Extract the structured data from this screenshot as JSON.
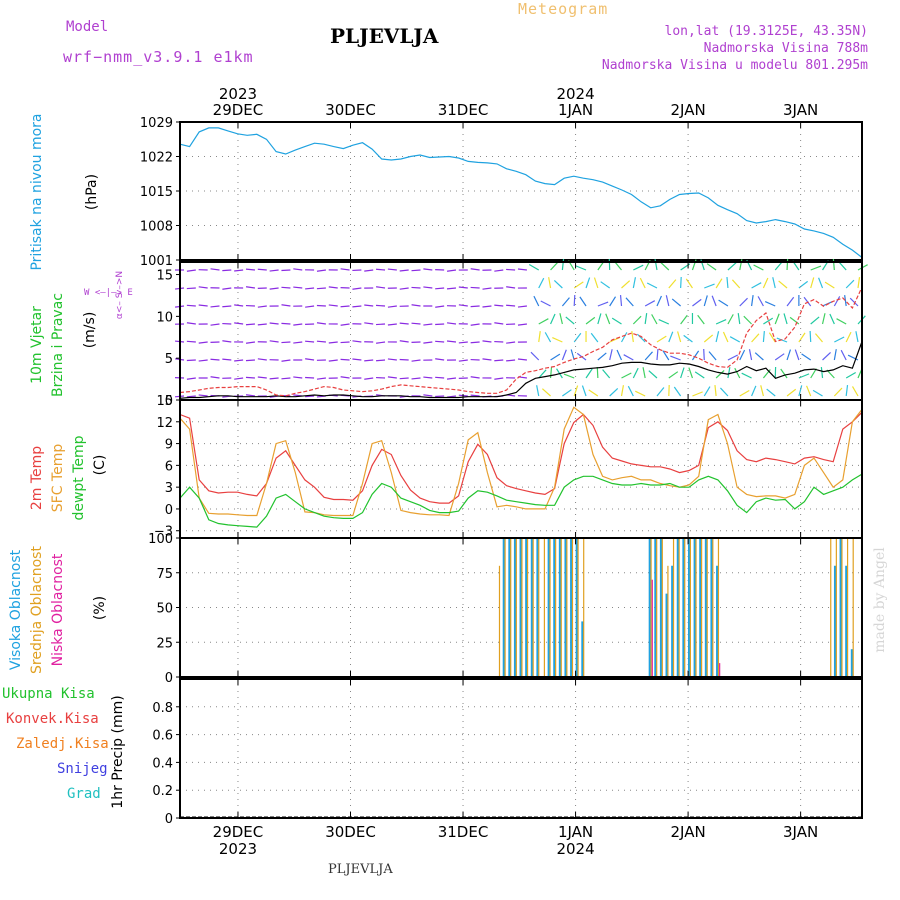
{
  "header": {
    "model_label": "Model",
    "model_name": "wrf−nmm_v3.9.1  e1km",
    "station_title": "PLJEVLJA",
    "meteogram_label": "Meteogram",
    "lonlat": "lon,lat (19.3125E, 43.35N)",
    "elevation": "Nadmorska Visina 788m",
    "model_elevation": "Nadmorska Visina u modelu 801.295m"
  },
  "footer": {
    "station": "PLJEVLJA",
    "signature": "made by Angel"
  },
  "time_axis": {
    "days": [
      {
        "label": "29DEC",
        "pos": 0.085
      },
      {
        "label": "30DEC",
        "pos": 0.25
      },
      {
        "label": "31DEC",
        "pos": 0.415
      },
      {
        "label": "1JAN",
        "pos": 0.58
      },
      {
        "label": "2JAN",
        "pos": 0.745
      },
      {
        "label": "3JAN",
        "pos": 0.91
      }
    ],
    "years": [
      {
        "label": "2023",
        "pos": 0.085
      },
      {
        "label": "2024",
        "pos": 0.58
      }
    ]
  },
  "colors": {
    "pressure": "#1fa2e0",
    "wind_title": "#22c22e",
    "wind_axis": "#b040d0",
    "t2m": "#e84040",
    "sfc": "#e8a030",
    "dewpt": "#22c22e",
    "high_cloud": "#1fa2e0",
    "mid_cloud": "#e0a020",
    "low_cloud": "#e020a0",
    "total_precip": "#22c22e",
    "conv_precip": "#e84040",
    "frozen_precip": "#f08020",
    "snow": "#4040e0",
    "hail": "#20c0c0"
  },
  "chart_data": [
    {
      "type": "line",
      "panel": "pressure",
      "ylabel_left": "Pritisak na nivou mora",
      "ylabel_unit": "(hPa)",
      "yticks": [
        "1029",
        "1022",
        "1015",
        "1008",
        "1001"
      ],
      "ylim": [
        1001,
        1029
      ],
      "grid": true,
      "series": [
        {
          "name": "Pritisak na nivou mora",
          "values": [
            1024.5,
            1024.0,
            1027.0,
            1027.8,
            1027.8,
            1027.2,
            1026.6,
            1026.3,
            1026.5,
            1025.5,
            1023.0,
            1022.5,
            1023.3,
            1024.0,
            1024.7,
            1024.5,
            1024.0,
            1023.6,
            1024.3,
            1024.8,
            1023.5,
            1021.5,
            1021.3,
            1021.5,
            1022.0,
            1022.3,
            1021.8,
            1021.9,
            1022.0,
            1021.7,
            1021.0,
            1020.8,
            1020.7,
            1020.5,
            1019.5,
            1019.0,
            1018.3,
            1017.0,
            1016.5,
            1016.3,
            1017.6,
            1018.0,
            1017.6,
            1017.3,
            1016.8,
            1016.0,
            1015.2,
            1014.3,
            1012.8,
            1011.6,
            1012.0,
            1013.3,
            1014.3,
            1014.5,
            1014.6,
            1013.6,
            1012.1,
            1011.2,
            1010.4,
            1009.0,
            1008.5,
            1008.8,
            1009.2,
            1008.8,
            1008.3,
            1007.3,
            1006.9,
            1006.4,
            1005.6,
            1004.2,
            1003.0,
            1001.5
          ]
        }
      ]
    },
    {
      "type": "line",
      "panel": "wind",
      "ylabel_left_1": "10m Vjetar",
      "ylabel_left_2": "Brzina i Pravac",
      "ylabel_unit": "(m/s)",
      "compass_ns": "α<– S –>N",
      "compass_we": "W  <–|–>  E",
      "yticks": [
        "15",
        "10",
        "5",
        "0"
      ],
      "ylim": [
        0,
        16.5
      ],
      "series": [
        {
          "name": "wind speed",
          "values": [
            0.2,
            0.3,
            0.3,
            0.4,
            0.5,
            0.5,
            0.4,
            0.4,
            0.4,
            0.4,
            0.5,
            0.4,
            0.4,
            0.5,
            0.6,
            0.5,
            0.6,
            0.6,
            0.5,
            0.4,
            0.4,
            0.5,
            0.5,
            0.5,
            0.4,
            0.4,
            0.3,
            0.3,
            0.3,
            0.3,
            0.4,
            0.4,
            0.4,
            0.4,
            0.6,
            0.9,
            2.0,
            2.6,
            2.8,
            3.0,
            3.3,
            3.6,
            3.7,
            3.8,
            3.9,
            4.1,
            4.4,
            4.5,
            4.5,
            4.3,
            4.2,
            4.2,
            4.4,
            4.3,
            4.0,
            3.6,
            3.3,
            3.1,
            3.4,
            4.0,
            3.5,
            3.8,
            2.6,
            3.0,
            3.2,
            3.6,
            3.7,
            3.4,
            3.6,
            4.1,
            3.8,
            7.0
          ]
        },
        {
          "name": "gusts",
          "values": [
            0.9,
            1.0,
            1.2,
            1.4,
            1.5,
            1.5,
            1.6,
            1.6,
            1.6,
            1.2,
            0.6,
            0.5,
            0.8,
            1.0,
            1.3,
            1.6,
            1.5,
            1.2,
            1.1,
            1.0,
            1.1,
            1.3,
            1.6,
            1.8,
            1.7,
            1.6,
            1.5,
            1.4,
            1.3,
            1.2,
            1.0,
            0.9,
            0.8,
            0.8,
            1.2,
            2.5,
            3.3,
            3.5,
            3.8,
            4.0,
            4.5,
            4.9,
            5.2,
            5.8,
            6.3,
            7.2,
            7.6,
            8.0,
            7.6,
            6.6,
            6.0,
            5.6,
            5.6,
            5.4,
            5.0,
            4.4,
            4.0,
            3.9,
            4.8,
            8.0,
            9.5,
            10.4,
            7.0,
            7.3,
            8.7,
            11.5,
            12.0,
            11.2,
            11.8,
            12.2,
            11.0,
            13.5
          ]
        }
      ]
    },
    {
      "type": "line",
      "panel": "temperature",
      "ylabel_left_1": "2m Temp",
      "ylabel_left_2": "SFC Temp",
      "ylabel_left_3": "dewpt Temp",
      "ylabel_unit": "(C)",
      "yticks": [
        "15",
        "12",
        "9",
        "6",
        "3",
        "0",
        "−3"
      ],
      "ylim": [
        -4,
        15
      ],
      "grid": true,
      "series": [
        {
          "name": "2m Temp",
          "values": [
            13.0,
            12.5,
            4.0,
            2.5,
            2.2,
            2.3,
            2.3,
            2.0,
            1.8,
            3.5,
            7.0,
            8.0,
            6.0,
            4.0,
            3.0,
            1.6,
            1.3,
            1.3,
            1.2,
            2.5,
            6.0,
            8.2,
            7.5,
            4.6,
            2.6,
            1.5,
            1.0,
            0.8,
            0.8,
            1.8,
            6.5,
            8.9,
            7.5,
            4.3,
            3.2,
            2.8,
            2.5,
            2.2,
            2.0,
            2.8,
            9.0,
            11.9,
            13.0,
            11.5,
            8.5,
            7.0,
            6.6,
            6.2,
            6.0,
            5.8,
            5.8,
            5.5,
            5.0,
            5.3,
            6.0,
            11.2,
            12.0,
            10.8,
            8.0,
            6.8,
            6.5,
            7.0,
            6.8,
            6.5,
            6.2,
            7.0,
            7.2,
            6.8,
            6.5,
            11.0,
            12.0,
            13.3
          ]
        },
        {
          "name": "SFC Temp",
          "values": [
            12.5,
            11.0,
            1.5,
            -0.6,
            -0.7,
            -0.7,
            -0.8,
            -0.9,
            -0.9,
            3.5,
            9.0,
            9.4,
            5.0,
            -0.4,
            -0.5,
            -0.8,
            -0.9,
            -0.9,
            -0.9,
            3.5,
            9.0,
            9.4,
            5.0,
            -0.2,
            -0.5,
            -0.7,
            -0.8,
            -0.8,
            -0.9,
            3.5,
            9.5,
            10.5,
            5.0,
            0.3,
            0.5,
            0.3,
            0.0,
            0.0,
            0.0,
            3.0,
            11.0,
            14.0,
            13.0,
            7.5,
            4.5,
            4.0,
            4.3,
            4.5,
            4.0,
            4.0,
            3.5,
            3.2,
            3.0,
            3.3,
            4.5,
            12.3,
            13.0,
            9.0,
            3.0,
            2.0,
            1.7,
            1.8,
            1.8,
            1.5,
            2.0,
            6.0,
            7.0,
            5.0,
            3.0,
            4.0,
            12.0,
            13.7
          ]
        },
        {
          "name": "dewpt Temp",
          "values": [
            1.5,
            3.0,
            1.5,
            -1.5,
            -2.0,
            -2.2,
            -2.3,
            -2.4,
            -2.5,
            -1.0,
            1.5,
            2.0,
            1.0,
            0.0,
            -0.5,
            -1.0,
            -1.2,
            -1.3,
            -1.3,
            -0.5,
            2.0,
            3.5,
            3.0,
            1.5,
            1.0,
            0.5,
            -0.2,
            -0.5,
            -0.5,
            -0.3,
            1.5,
            2.5,
            2.3,
            1.8,
            1.2,
            1.0,
            0.8,
            0.6,
            0.5,
            0.5,
            3.0,
            4.0,
            4.5,
            4.5,
            4.0,
            3.5,
            3.3,
            3.3,
            3.5,
            3.3,
            3.3,
            3.5,
            3.0,
            3.0,
            4.0,
            4.5,
            4.0,
            2.5,
            0.5,
            -0.5,
            1.0,
            1.5,
            1.2,
            1.3,
            0.0,
            1.0,
            3.0,
            2.0,
            2.5,
            3.0,
            4.0,
            4.8
          ]
        }
      ]
    },
    {
      "type": "bar",
      "panel": "clouds",
      "ylabel_left_1": "Visoka Oblacnost",
      "ylabel_left_2": "Srednja Oblacnost",
      "ylabel_left_3": "Niska Oblacnost",
      "ylabel_unit": "(%)",
      "yticks": [
        "100",
        "75",
        "50",
        "25",
        "0"
      ],
      "ylim": [
        0,
        100
      ],
      "grid": true,
      "series": [
        {
          "name": "Visoka Oblacnost",
          "values": [
            0,
            0,
            0,
            0,
            0,
            0,
            0,
            0,
            0,
            0,
            0,
            0,
            0,
            0,
            0,
            0,
            0,
            0,
            0,
            0,
            0,
            100,
            100,
            100,
            100,
            100,
            100,
            100,
            0,
            100,
            100,
            100,
            100,
            100,
            100,
            40,
            0,
            0,
            0,
            0,
            0,
            0,
            0,
            0,
            0,
            0,
            0,
            100,
            100,
            100,
            60,
            80,
            100,
            100,
            100,
            100,
            100,
            100,
            100,
            80,
            0,
            0,
            0,
            0,
            0,
            0,
            0,
            0,
            0,
            0,
            0,
            0,
            0,
            0,
            0,
            0,
            0,
            0,
            0,
            0,
            80,
            100,
            80,
            20
          ]
        },
        {
          "name": "Srednja Oblacnost",
          "values": [
            0,
            0,
            0,
            0,
            0,
            0,
            0,
            0,
            0,
            0,
            0,
            0,
            0,
            0,
            0,
            0,
            0,
            0,
            0,
            0,
            80,
            100,
            100,
            100,
            100,
            100,
            100,
            100,
            100,
            100,
            100,
            100,
            100,
            100,
            100,
            100,
            0,
            0,
            0,
            0,
            0,
            0,
            0,
            0,
            0,
            0,
            0,
            100,
            100,
            100,
            80,
            100,
            100,
            100,
            100,
            100,
            100,
            100,
            100,
            100,
            0,
            0,
            0,
            0,
            0,
            0,
            0,
            0,
            0,
            0,
            0,
            0,
            0,
            0,
            0,
            0,
            0,
            0,
            0,
            100,
            100,
            100,
            100,
            100
          ]
        },
        {
          "name": "Niska Oblacnost",
          "values": [
            0,
            0,
            0,
            0,
            0,
            0,
            0,
            0,
            0,
            0,
            0,
            0,
            0,
            0,
            0,
            0,
            0,
            0,
            0,
            0,
            0,
            0,
            0,
            0,
            0,
            0,
            0,
            0,
            0,
            0,
            0,
            0,
            0,
            0,
            0,
            0,
            0,
            0,
            0,
            0,
            0,
            0,
            0,
            0,
            0,
            0,
            0,
            70,
            0,
            0,
            0,
            0,
            0,
            0,
            0,
            0,
            0,
            0,
            0,
            10,
            0,
            0,
            0,
            0,
            0,
            0,
            0,
            0,
            0,
            0,
            0,
            0,
            0,
            0,
            0,
            0,
            0,
            0,
            0,
            0,
            0,
            0,
            0,
            0
          ]
        }
      ]
    },
    {
      "type": "bar",
      "panel": "precipitation",
      "ylabel_unit": "1hr Precip (mm)",
      "legend": [
        "Ukupna  Kisa",
        "Konvek.Kisa",
        "Zaledj.Kisa",
        "Snijeg",
        "Grad"
      ],
      "yticks": [
        "0.8",
        "0.6",
        "0.4",
        "0.2",
        "0"
      ],
      "ylim": [
        0,
        1.0
      ],
      "grid": true,
      "series": [
        {
          "name": "Ukupna  Kisa",
          "values": [
            0,
            0,
            0,
            0,
            0,
            0,
            0,
            0,
            0,
            0,
            0,
            0,
            0,
            0,
            0,
            0,
            0,
            0,
            0,
            0,
            0,
            0,
            0,
            0,
            0,
            0,
            0,
            0,
            0,
            0,
            0,
            0,
            0,
            0,
            0,
            0,
            0,
            0,
            0,
            0,
            0,
            0,
            0,
            0,
            0,
            0,
            0,
            0,
            0,
            0,
            0,
            0,
            0,
            0,
            0,
            0,
            0,
            0,
            0,
            0,
            0,
            0,
            0,
            0,
            0,
            0,
            0,
            0,
            0.01,
            0,
            0,
            0,
            0
          ]
        }
      ]
    }
  ]
}
